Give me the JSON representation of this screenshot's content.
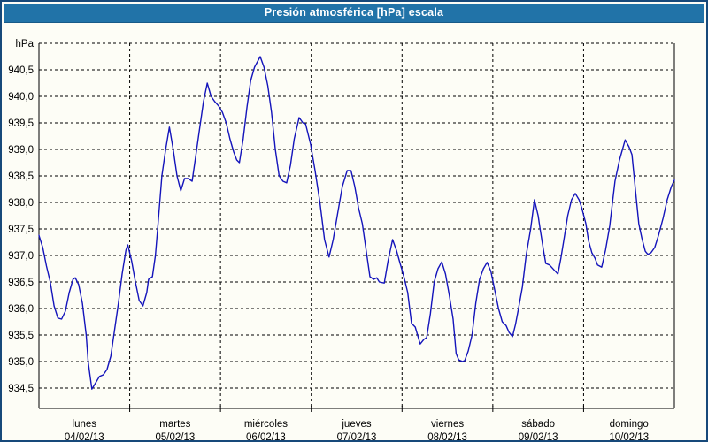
{
  "title": "Presión atmosférica [hPa] escala",
  "colors": {
    "titlebar": "#2173a8",
    "frame_border": "#17497a",
    "line": "#1414bb",
    "grid": "#000000",
    "background": "#fdfdf6",
    "text": "#000000"
  },
  "y_axis": {
    "unit": "hPa",
    "ticks": [
      "940,5",
      "940,0",
      "939,5",
      "939,0",
      "938,5",
      "938,0",
      "937,5",
      "937,0",
      "936,5",
      "936,0",
      "935,5",
      "935,0",
      "934,5"
    ]
  },
  "x_axis": {
    "days": [
      {
        "name": "lunes",
        "date": "04/02/13"
      },
      {
        "name": "martes",
        "date": "05/02/13"
      },
      {
        "name": "miércoles",
        "date": "06/02/13"
      },
      {
        "name": "jueves",
        "date": "07/02/13"
      },
      {
        "name": "viernes",
        "date": "08/02/13"
      },
      {
        "name": "sábado",
        "date": "09/02/13"
      },
      {
        "name": "domingo",
        "date": "10/02/13"
      }
    ]
  },
  "chart_data": {
    "type": "line",
    "title": "Presión atmosférica [hPa] escala",
    "ylabel": "hPa",
    "ylim": [
      934.1,
      941.0
    ],
    "y_tick_step": 0.5,
    "x_unit": "hours from lunes 04/02/13 00:00",
    "x_range_hours": 168,
    "grid": "dashed both axes",
    "legend": "none",
    "series": [
      {
        "name": "presión atmosférica",
        "points": [
          [
            0,
            937.38
          ],
          [
            1,
            937.15
          ],
          [
            2,
            936.8
          ],
          [
            3,
            936.5
          ],
          [
            4,
            936.05
          ],
          [
            5,
            935.82
          ],
          [
            6,
            935.8
          ],
          [
            7,
            935.95
          ],
          [
            8,
            936.3
          ],
          [
            9,
            936.55
          ],
          [
            9.6,
            936.58
          ],
          [
            10.5,
            936.45
          ],
          [
            11.5,
            936.1
          ],
          [
            12.5,
            935.5
          ],
          [
            13,
            935.0
          ],
          [
            14,
            934.48
          ],
          [
            15,
            934.6
          ],
          [
            16,
            934.72
          ],
          [
            17,
            934.75
          ],
          [
            18,
            934.85
          ],
          [
            19,
            935.1
          ],
          [
            20,
            935.6
          ],
          [
            21,
            936.1
          ],
          [
            22,
            936.65
          ],
          [
            23,
            937.1
          ],
          [
            23.5,
            937.2
          ],
          [
            24.5,
            936.9
          ],
          [
            25.5,
            936.5
          ],
          [
            26.5,
            936.15
          ],
          [
            27.5,
            936.05
          ],
          [
            28.5,
            936.3
          ],
          [
            29,
            936.55
          ],
          [
            30,
            936.6
          ],
          [
            30.8,
            937.0
          ],
          [
            31.5,
            937.6
          ],
          [
            32.5,
            938.5
          ],
          [
            33.5,
            939.0
          ],
          [
            34.5,
            939.42
          ],
          [
            35.5,
            939.0
          ],
          [
            36.5,
            938.5
          ],
          [
            37.5,
            938.22
          ],
          [
            38.5,
            938.45
          ],
          [
            39.5,
            938.45
          ],
          [
            40.5,
            938.4
          ],
          [
            41.5,
            938.9
          ],
          [
            42.5,
            939.4
          ],
          [
            43.5,
            939.9
          ],
          [
            44.5,
            940.25
          ],
          [
            45.5,
            940.0
          ],
          [
            46.5,
            939.9
          ],
          [
            47.5,
            939.82
          ],
          [
            48.5,
            939.7
          ],
          [
            49.5,
            939.5
          ],
          [
            50.5,
            939.2
          ],
          [
            51.5,
            938.95
          ],
          [
            52.3,
            938.8
          ],
          [
            53,
            938.75
          ],
          [
            54,
            939.2
          ],
          [
            55,
            939.8
          ],
          [
            56,
            940.3
          ],
          [
            57,
            940.55
          ],
          [
            58.5,
            940.75
          ],
          [
            59.5,
            940.55
          ],
          [
            60.5,
            940.2
          ],
          [
            61.5,
            939.7
          ],
          [
            62.5,
            939.0
          ],
          [
            63.5,
            938.5
          ],
          [
            64.5,
            938.4
          ],
          [
            65.5,
            938.37
          ],
          [
            66.5,
            938.7
          ],
          [
            67.5,
            939.2
          ],
          [
            68.8,
            939.6
          ],
          [
            69.8,
            939.5
          ],
          [
            70.5,
            939.48
          ],
          [
            71.8,
            939.1
          ],
          [
            73,
            938.6
          ],
          [
            74.3,
            938.0
          ],
          [
            75.5,
            937.3
          ],
          [
            76.7,
            936.97
          ],
          [
            77.8,
            937.3
          ],
          [
            79,
            937.8
          ],
          [
            80.2,
            938.3
          ],
          [
            81.5,
            938.6
          ],
          [
            82.5,
            938.6
          ],
          [
            83.5,
            938.3
          ],
          [
            84.5,
            937.9
          ],
          [
            85.5,
            937.6
          ],
          [
            86.5,
            937.1
          ],
          [
            87.5,
            936.6
          ],
          [
            88.5,
            936.55
          ],
          [
            89.3,
            936.58
          ],
          [
            90,
            936.5
          ],
          [
            91.3,
            936.48
          ],
          [
            92.3,
            936.9
          ],
          [
            93.5,
            937.3
          ],
          [
            94.5,
            937.1
          ],
          [
            95.5,
            936.85
          ],
          [
            96.5,
            936.6
          ],
          [
            97.5,
            936.3
          ],
          [
            98.5,
            935.72
          ],
          [
            99.5,
            935.65
          ],
          [
            100.8,
            935.33
          ],
          [
            101.8,
            935.42
          ],
          [
            102.5,
            935.45
          ],
          [
            103.5,
            935.9
          ],
          [
            104.5,
            936.5
          ],
          [
            105.5,
            936.75
          ],
          [
            106.5,
            936.88
          ],
          [
            107.5,
            936.65
          ],
          [
            108.5,
            936.25
          ],
          [
            109.5,
            935.8
          ],
          [
            110.3,
            935.15
          ],
          [
            111,
            935.03
          ],
          [
            112,
            935.0
          ],
          [
            112.6,
            935.02
          ],
          [
            113.5,
            935.2
          ],
          [
            114.5,
            935.5
          ],
          [
            115.5,
            936.1
          ],
          [
            116.5,
            936.55
          ],
          [
            117.5,
            936.75
          ],
          [
            118.5,
            936.87
          ],
          [
            119.5,
            936.7
          ],
          [
            120.5,
            936.35
          ],
          [
            121.5,
            936.0
          ],
          [
            122.5,
            935.75
          ],
          [
            123.5,
            935.68
          ],
          [
            124.3,
            935.55
          ],
          [
            125.2,
            935.47
          ],
          [
            126,
            935.7
          ],
          [
            126.8,
            936.0
          ],
          [
            127.8,
            936.4
          ],
          [
            128.8,
            937.0
          ],
          [
            130,
            937.5
          ],
          [
            131,
            938.05
          ],
          [
            132,
            937.75
          ],
          [
            132.5,
            937.5
          ],
          [
            133.5,
            937.05
          ],
          [
            134,
            936.85
          ],
          [
            135,
            936.82
          ],
          [
            136.3,
            936.72
          ],
          [
            137.2,
            936.65
          ],
          [
            138,
            936.95
          ],
          [
            138.8,
            937.3
          ],
          [
            139.8,
            937.75
          ],
          [
            140.8,
            938.05
          ],
          [
            141.8,
            938.17
          ],
          [
            142.8,
            938.05
          ],
          [
            143.5,
            937.9
          ],
          [
            144.6,
            937.6
          ],
          [
            145.3,
            937.28
          ],
          [
            146.2,
            937.05
          ],
          [
            147,
            936.95
          ],
          [
            147.7,
            936.82
          ],
          [
            148.8,
            936.78
          ],
          [
            149.8,
            937.1
          ],
          [
            150.9,
            937.55
          ],
          [
            152.3,
            938.4
          ],
          [
            153.5,
            938.8
          ],
          [
            155,
            939.18
          ],
          [
            156,
            939.05
          ],
          [
            156.8,
            938.9
          ],
          [
            157.9,
            938.1
          ],
          [
            158.6,
            937.6
          ],
          [
            159.4,
            937.33
          ],
          [
            160.3,
            937.08
          ],
          [
            161,
            937.02
          ],
          [
            161.8,
            937.05
          ],
          [
            162.8,
            937.15
          ],
          [
            163.8,
            937.38
          ],
          [
            165,
            937.7
          ],
          [
            166.1,
            938.05
          ],
          [
            167.2,
            938.3
          ],
          [
            168,
            938.42
          ]
        ]
      }
    ]
  }
}
